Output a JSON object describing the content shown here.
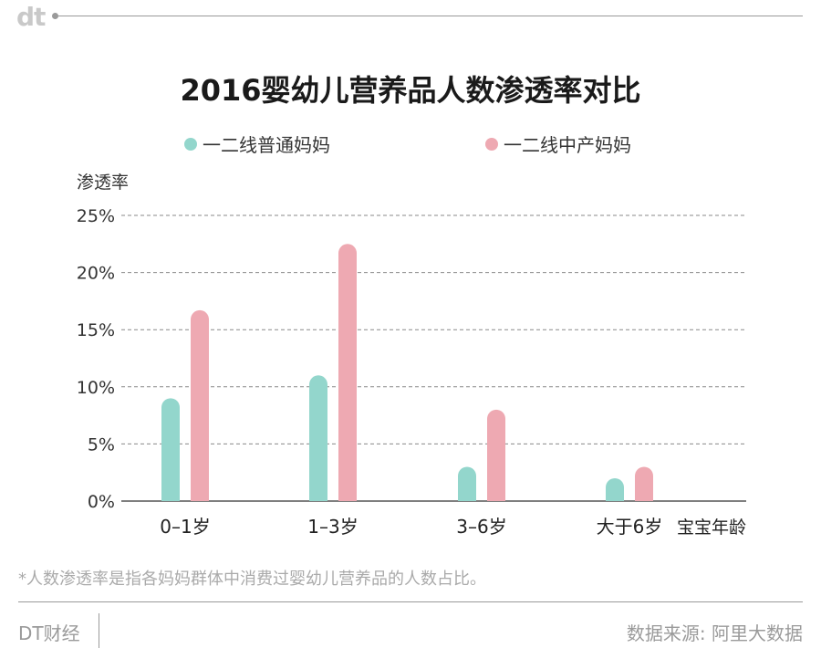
{
  "header": {
    "logo": "dt"
  },
  "title": "2016婴幼儿营养品人数渗透率对比",
  "legend": [
    {
      "label": "一二线普通妈妈",
      "color": "#93d6cc"
    },
    {
      "label": "一二线中产妈妈",
      "color": "#eea9b2"
    }
  ],
  "note": "*人数渗透率是指各妈妈群体中消费过婴幼儿营养品的人数占比。",
  "footer": {
    "brand": "DT财经",
    "source": "数据来源: 阿里大数据"
  },
  "chart_data": {
    "type": "bar",
    "categories": [
      "0–1岁",
      "1–3岁",
      "3–6岁",
      "大于6岁"
    ],
    "series": [
      {
        "name": "一二线普通妈妈",
        "values": [
          9,
          11,
          3,
          2
        ],
        "color": "#93d6cc"
      },
      {
        "name": "一二线中产妈妈",
        "values": [
          16.7,
          22.5,
          8,
          3
        ],
        "color": "#eea9b2"
      }
    ],
    "ylabel": "渗透率",
    "xlabel": "宝宝年龄",
    "ylim": [
      0,
      25
    ],
    "yticks": [
      0,
      5,
      10,
      15,
      20,
      25
    ],
    "ytick_labels": [
      "0%",
      "5%",
      "10%",
      "15%",
      "20%",
      "25%"
    ],
    "grid": "dashed horizontal",
    "legend_position": "top"
  }
}
